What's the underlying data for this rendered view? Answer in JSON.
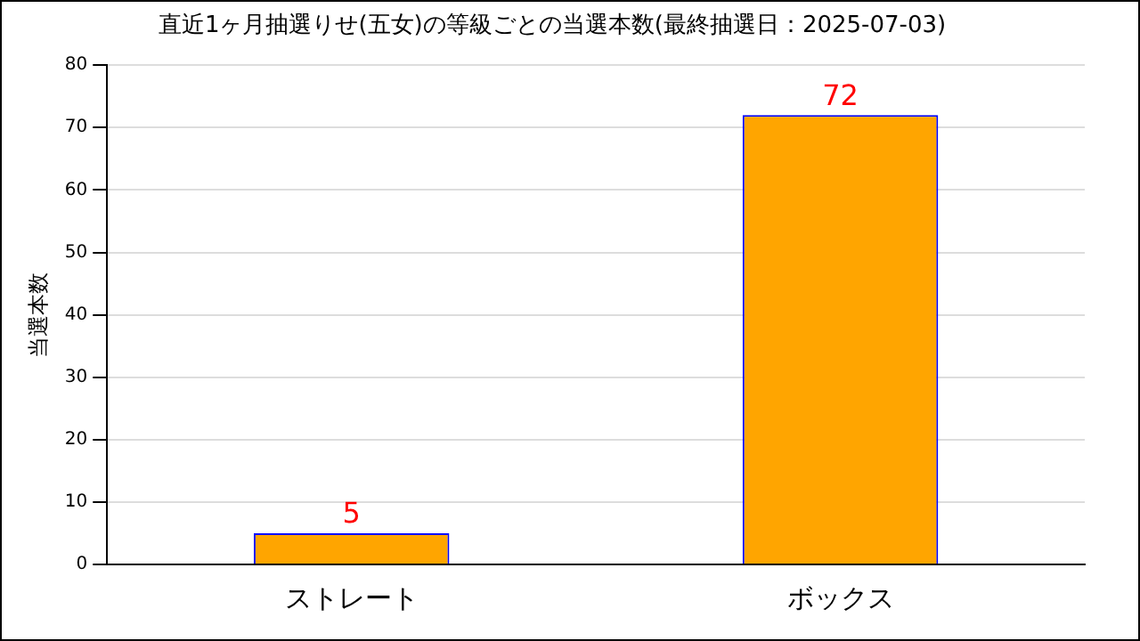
{
  "chart_data": {
    "type": "bar",
    "title": "直近1ヶ月抽選りせ(五女)の等級ごとの当選本数(最終抽選日：2025-07-03)",
    "ylabel": "当選本数",
    "categories": [
      "ストレート",
      "ボックス"
    ],
    "values": [
      5,
      72
    ],
    "color": "#ffa500",
    "ylim": [
      0,
      80
    ],
    "yticks": [
      0,
      10,
      20,
      30,
      40,
      50,
      60,
      70,
      80
    ],
    "grid": "y",
    "data_labels": true,
    "legend": false
  }
}
